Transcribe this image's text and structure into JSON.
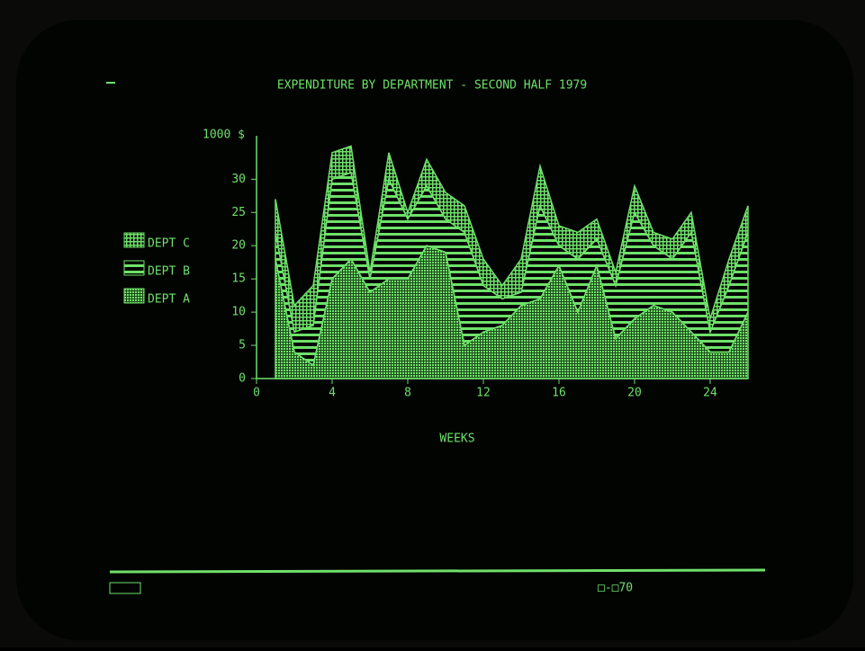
{
  "chart_data": {
    "type": "stacked_area",
    "title": "EXPENDITURE BY DEPARTMENT - SECOND HALF 1979",
    "x_label": "WEEKS",
    "y_label": "1000 $",
    "x": [
      1,
      2,
      3,
      4,
      5,
      6,
      7,
      8,
      9,
      10,
      11,
      12,
      13,
      14,
      15,
      16,
      17,
      18,
      19,
      20,
      21,
      22,
      23,
      24,
      25,
      26
    ],
    "series": [
      {
        "name": "DEPT A",
        "color": "#6fe06a",
        "values": [
          18,
          4,
          2,
          15,
          18,
          13,
          15,
          15,
          20,
          19,
          5,
          7,
          8,
          11,
          12,
          17,
          10,
          17,
          6,
          9,
          11,
          10,
          7,
          4,
          4,
          10
        ]
      },
      {
        "name": "DEPT B",
        "color": "#6fe06a",
        "values": [
          4,
          3,
          6,
          15,
          13,
          2,
          15,
          9,
          9,
          5,
          17,
          7,
          4,
          2,
          14,
          3,
          8,
          4,
          8,
          16,
          9,
          8,
          15,
          3,
          10,
          12
        ]
      },
      {
        "name": "DEPT C",
        "color": "#6fe06a",
        "values": [
          5,
          4,
          6,
          4,
          4,
          1,
          4,
          1,
          4,
          4,
          4,
          4,
          2,
          5,
          6,
          3,
          4,
          3,
          2,
          4,
          2,
          3,
          3,
          2,
          4,
          4
        ]
      }
    ],
    "xlim": [
      0,
      26
    ],
    "xticks": [
      0,
      4,
      8,
      12,
      16,
      20,
      24
    ],
    "ylim": [
      0,
      36
    ],
    "yticks": [
      0,
      5,
      10,
      15,
      20,
      25,
      30
    ],
    "footer": "□-□70"
  }
}
